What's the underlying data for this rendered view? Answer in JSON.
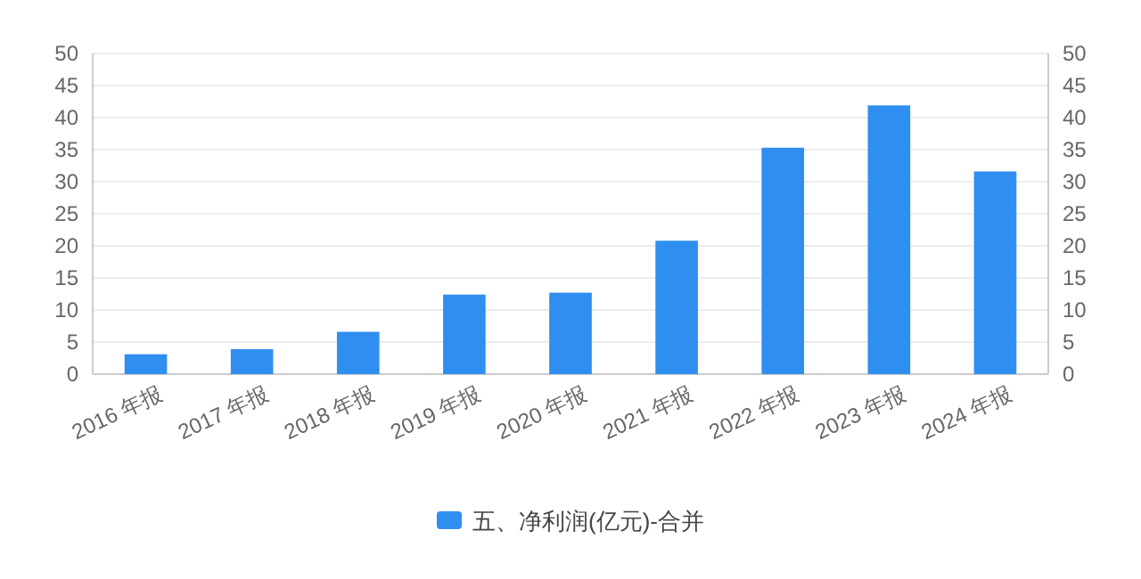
{
  "chart_data": {
    "type": "bar",
    "categories": [
      "2016 年报",
      "2017 年报",
      "2018 年报",
      "2019 年报",
      "2020 年报",
      "2021 年报",
      "2022 年报",
      "2023 年报",
      "2024 年报"
    ],
    "series": [
      {
        "name": "五、净利润(亿元)-合并",
        "color": "#2f8ff0",
        "values": [
          3.1,
          3.9,
          6.6,
          12.4,
          12.7,
          20.8,
          35.3,
          41.9,
          31.6
        ]
      }
    ],
    "ylim": [
      0,
      50
    ],
    "yticks": [
      0,
      5,
      10,
      15,
      20,
      25,
      30,
      35,
      40,
      45,
      50
    ],
    "y2lim": [
      0,
      50
    ],
    "y2ticks": [
      0,
      5,
      10,
      15,
      20,
      25,
      30,
      35,
      40,
      45,
      50
    ],
    "grid": "y",
    "legend": "bottom"
  }
}
